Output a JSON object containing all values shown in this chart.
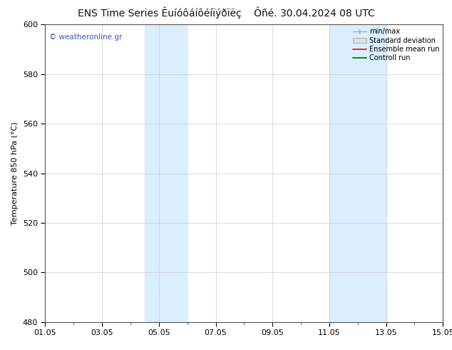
{
  "title": "ENS Time Series Êuíóôáíôéíïýðïëç",
  "title2": "Ôñé. 30.04.2024 08 UTC",
  "ylabel": "Temperature 850 hPa (°C)",
  "watermark": "© weatheronline.gr",
  "ylim": [
    480,
    600
  ],
  "yticks": [
    480,
    500,
    520,
    540,
    560,
    580,
    600
  ],
  "xlim": [
    1,
    15
  ],
  "xtick_labels": [
    "01.05",
    "03.05",
    "05.05",
    "07.05",
    "09.05",
    "11.05",
    "13.05",
    "15.05"
  ],
  "xtick_days": [
    1,
    3,
    5,
    7,
    9,
    11,
    13,
    15
  ],
  "shade_bands": [
    {
      "start": 4.5,
      "end": 6.0
    },
    {
      "start": 11.0,
      "end": 13.0
    }
  ],
  "shade_color": "#dbeeff",
  "bg_color": "#ffffff",
  "grid_color": "#cccccc",
  "title_fontsize": 10,
  "tick_fontsize": 8,
  "label_fontsize": 8,
  "watermark_color": "#3355cc",
  "legend_fontsize": 7
}
